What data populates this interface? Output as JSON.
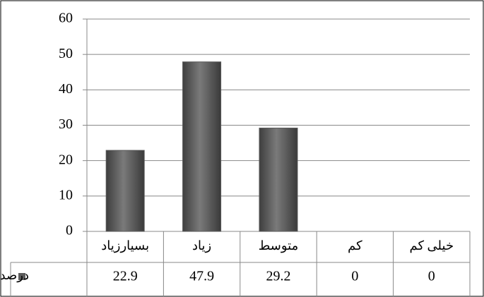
{
  "chart_data": {
    "type": "bar",
    "categories": [
      "بسیارزیاد",
      "زیاد",
      "متوسط",
      "کم",
      "خیلی کم"
    ],
    "series": [
      {
        "name": "درصد",
        "color": "#5a5a5a",
        "values": [
          22.9,
          47.9,
          29.2,
          0,
          0
        ]
      }
    ],
    "ylim": [
      0,
      60
    ],
    "yticks": [
      0,
      10,
      20,
      30,
      40,
      50,
      60
    ],
    "grid": true
  }
}
